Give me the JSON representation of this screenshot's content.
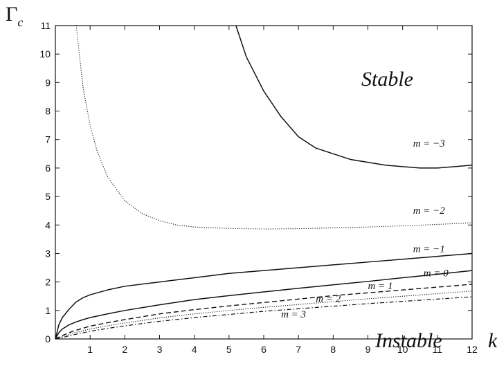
{
  "chart_data": {
    "type": "line",
    "title": "",
    "xlabel": "k",
    "ylabel": "Γ",
    "ylabel_subscript": "c",
    "xlim": [
      0,
      12
    ],
    "ylim": [
      0,
      11
    ],
    "x_ticks": [
      1,
      2,
      3,
      4,
      5,
      6,
      7,
      8,
      9,
      10,
      11,
      12
    ],
    "y_ticks": [
      0,
      1,
      2,
      3,
      4,
      5,
      6,
      7,
      8,
      9,
      10,
      11
    ],
    "grid": false,
    "legend": "none",
    "region_labels": {
      "stable": "Stable",
      "instable": "Instable"
    },
    "series": [
      {
        "name": "m = −3",
        "style": "solid",
        "x": [
          5.2,
          5.5,
          6,
          6.5,
          7,
          7.5,
          8,
          8.5,
          9,
          9.5,
          10,
          10.5,
          11,
          11.5,
          12
        ],
        "y": [
          11,
          9.9,
          8.7,
          7.8,
          7.1,
          6.7,
          6.5,
          6.3,
          6.2,
          6.1,
          6.05,
          6.0,
          6.0,
          6.05,
          6.1
        ]
      },
      {
        "name": "m = −2",
        "style": "dotted",
        "x": [
          0.6,
          0.7,
          0.8,
          1,
          1.2,
          1.5,
          2,
          2.5,
          3,
          3.5,
          4,
          5,
          6,
          7,
          8,
          9,
          10,
          11,
          12
        ],
        "y": [
          11,
          9.9,
          8.8,
          7.5,
          6.6,
          5.7,
          4.85,
          4.4,
          4.15,
          4.0,
          3.93,
          3.88,
          3.86,
          3.87,
          3.9,
          3.93,
          3.97,
          4.02,
          4.08
        ]
      },
      {
        "name": "m = −1",
        "style": "solid",
        "x": [
          0,
          0.1,
          0.2,
          0.4,
          0.6,
          0.8,
          1,
          1.5,
          2,
          3,
          4,
          5,
          6,
          7,
          8,
          9,
          10,
          11,
          12
        ],
        "y": [
          0,
          0.5,
          0.75,
          1.05,
          1.3,
          1.45,
          1.55,
          1.72,
          1.85,
          2.0,
          2.15,
          2.3,
          2.4,
          2.5,
          2.6,
          2.7,
          2.8,
          2.9,
          3.0
        ]
      },
      {
        "name": "m = 0",
        "style": "solid",
        "x": [
          0,
          0.1,
          0.2,
          0.4,
          0.6,
          0.8,
          1,
          1.5,
          2,
          3,
          4,
          5,
          6,
          7,
          8,
          9,
          10,
          11,
          12
        ],
        "y": [
          0,
          0.22,
          0.35,
          0.5,
          0.6,
          0.68,
          0.75,
          0.88,
          1.0,
          1.2,
          1.38,
          1.52,
          1.65,
          1.78,
          1.9,
          2.02,
          2.15,
          2.27,
          2.4
        ]
      },
      {
        "name": "m = 1",
        "style": "dashed",
        "x": [
          0,
          0.2,
          0.5,
          1,
          1.5,
          2,
          3,
          4,
          5,
          6,
          7,
          8,
          9,
          10,
          11,
          12
        ],
        "y": [
          0,
          0.12,
          0.27,
          0.45,
          0.57,
          0.68,
          0.88,
          1.03,
          1.16,
          1.28,
          1.4,
          1.52,
          1.62,
          1.72,
          1.82,
          1.92
        ]
      },
      {
        "name": "m = 2",
        "style": "dotted",
        "x": [
          0,
          0.2,
          0.5,
          1,
          1.5,
          2,
          3,
          4,
          5,
          6,
          7,
          8,
          9,
          10,
          11,
          12
        ],
        "y": [
          0,
          0.08,
          0.2,
          0.35,
          0.46,
          0.56,
          0.74,
          0.88,
          1.0,
          1.11,
          1.21,
          1.31,
          1.41,
          1.5,
          1.59,
          1.68
        ]
      },
      {
        "name": "m = 3",
        "style": "dashdot",
        "x": [
          0,
          0.2,
          0.5,
          1,
          1.5,
          2,
          3,
          4,
          5,
          6,
          7,
          8,
          9,
          10,
          11,
          12
        ],
        "y": [
          0,
          0.05,
          0.14,
          0.27,
          0.37,
          0.46,
          0.62,
          0.75,
          0.86,
          0.97,
          1.06,
          1.15,
          1.24,
          1.32,
          1.4,
          1.48
        ]
      }
    ],
    "curve_labels": [
      {
        "text": "m = −3",
        "x": 10.3,
        "y": 6.75
      },
      {
        "text": "m = −2",
        "x": 10.3,
        "y": 4.4
      },
      {
        "text": "m = −1",
        "x": 10.3,
        "y": 3.05
      },
      {
        "text": "m = 0",
        "x": 10.6,
        "y": 2.2
      },
      {
        "text": "m = 1",
        "x": 9.0,
        "y": 1.75
      },
      {
        "text": "m = 2",
        "x": 7.5,
        "y": 1.3
      },
      {
        "text": "m = 3",
        "x": 6.5,
        "y": 0.75
      }
    ]
  }
}
